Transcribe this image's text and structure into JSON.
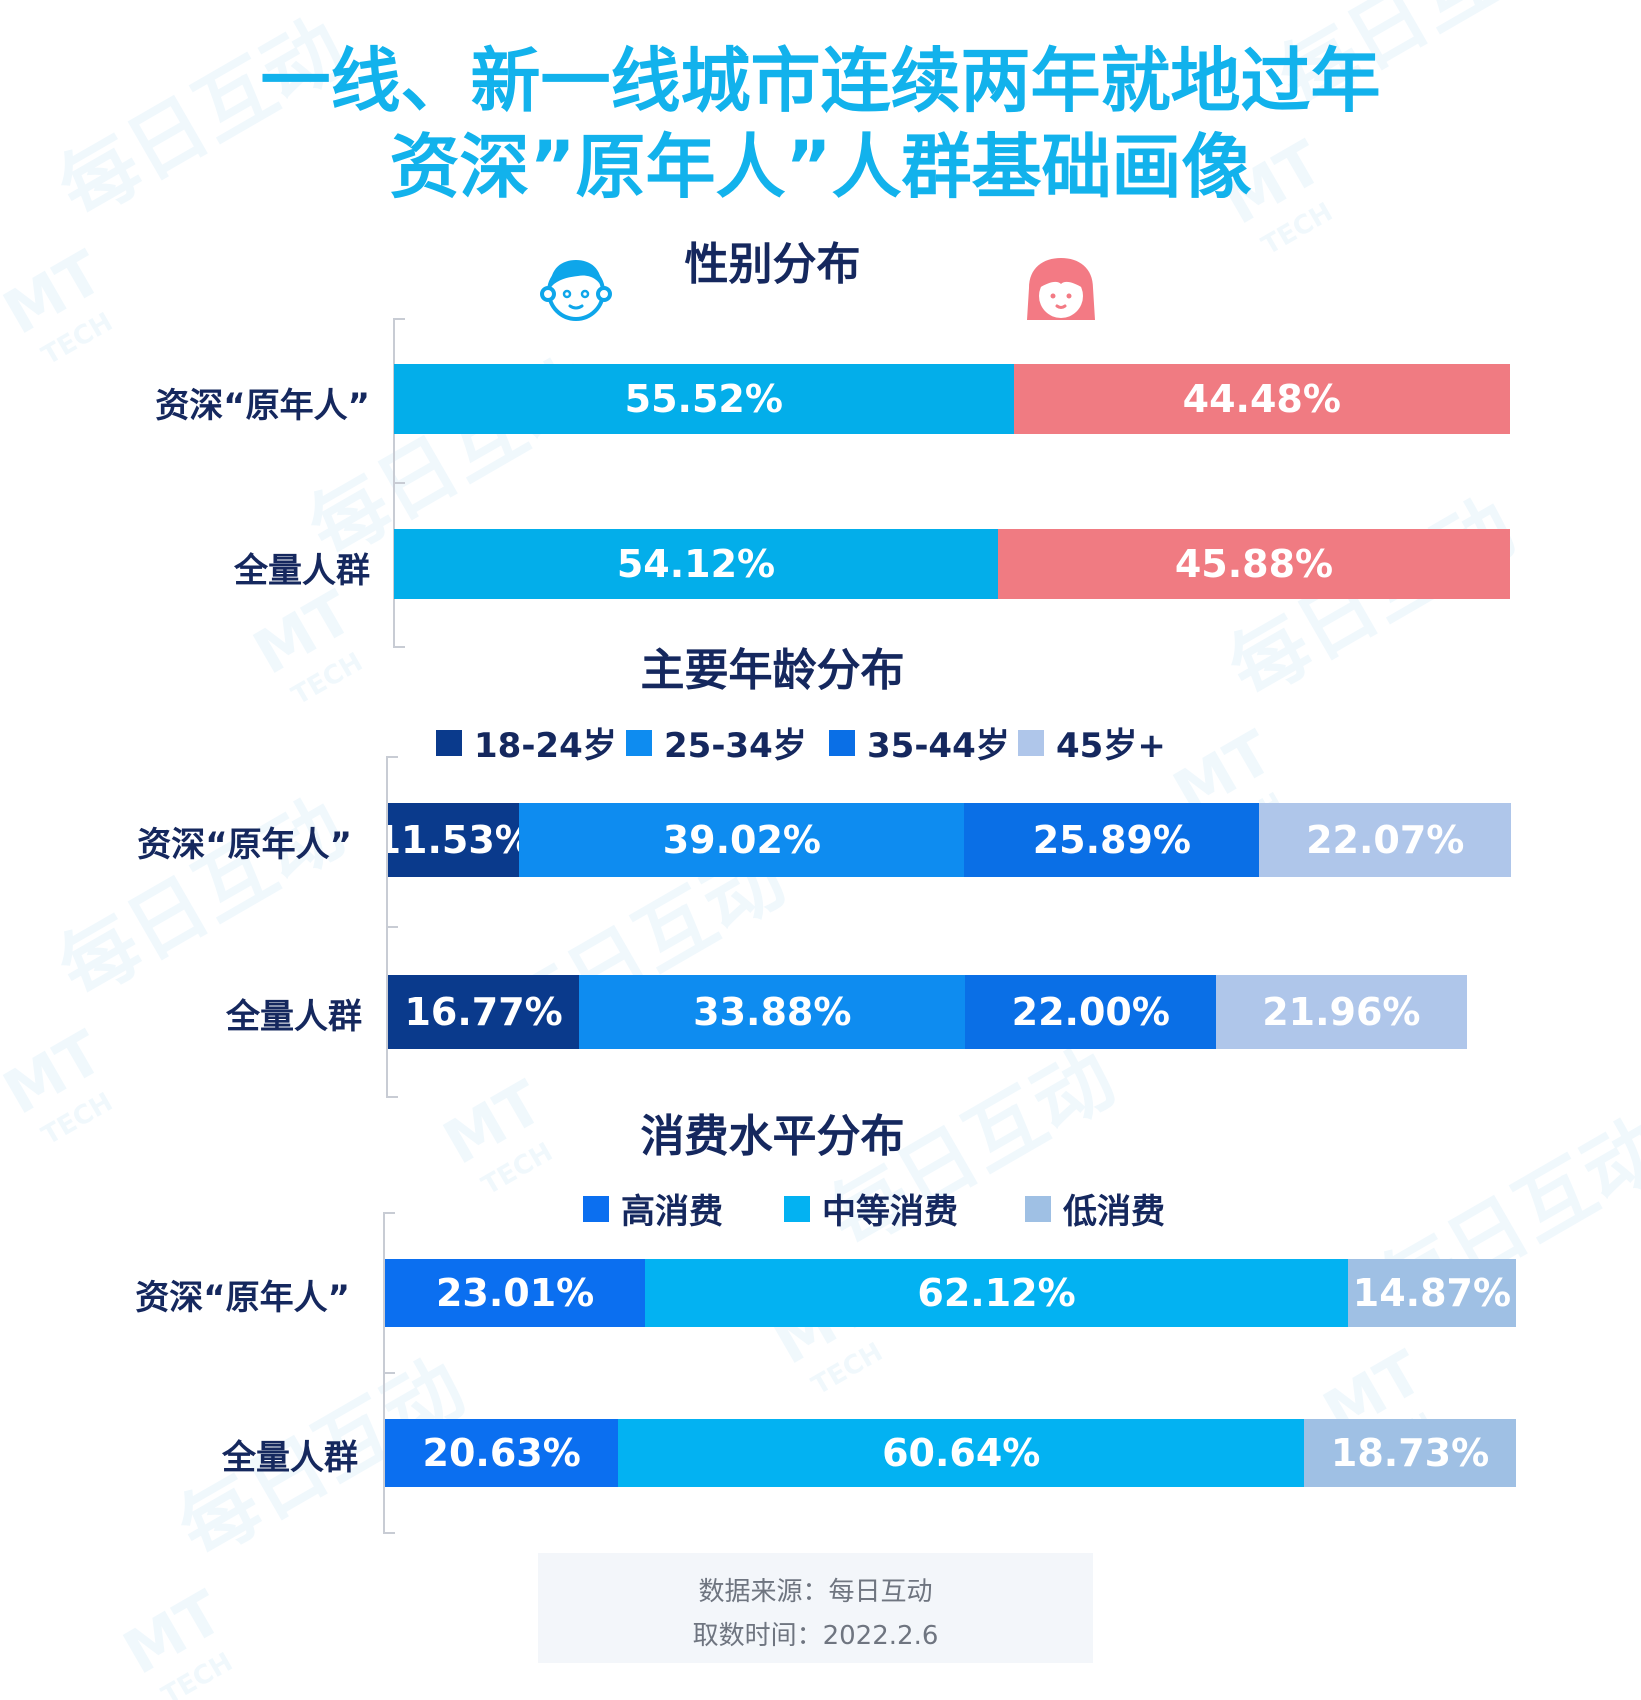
{
  "title": {
    "line1": "一线、新一线城市连续两年就地过年",
    "line2": "资深”原年人”人群基础画像"
  },
  "watermark": {
    "brand": "每日互动",
    "tech": "TECH",
    "logo": "MT"
  },
  "colors": {
    "title": "#12b2ec",
    "dark_text": "#15285e",
    "male": "#03aeea",
    "female": "#f07b82",
    "age_18_24": "#0a3a8c",
    "age_25_34": "#0e8cf0",
    "age_35_44": "#0a6fe6",
    "age_45_plus": "#afc6ea",
    "consume_high": "#0b6ff0",
    "consume_mid": "#03b2f2",
    "consume_low": "#9fc0e4"
  },
  "icons": {
    "male": "boy-face-icon",
    "female": "girl-face-icon"
  },
  "chart_data": [
    {
      "type": "bar",
      "orientation": "horizontal-stacked",
      "title": "性别分布",
      "categories": [
        "资深“原年人”",
        "全量人群"
      ],
      "series": [
        {
          "legend_icon": "boy-face-icon",
          "values": [
            55.52,
            54.12
          ],
          "labels": [
            "55.52%",
            "54.12%"
          ]
        },
        {
          "legend_icon": "girl-face-icon",
          "values": [
            44.48,
            45.88
          ],
          "labels": [
            "44.48%",
            "45.88%"
          ]
        }
      ],
      "xlim": [
        0,
        100
      ]
    },
    {
      "type": "bar",
      "orientation": "horizontal-stacked",
      "title": "主要年龄分布",
      "categories": [
        "资深“原年人”",
        "全量人群"
      ],
      "series": [
        {
          "name": "18-24岁",
          "values": [
            11.53,
            16.77
          ],
          "labels": [
            "11.53%",
            "16.77%"
          ]
        },
        {
          "name": "25-34岁",
          "values": [
            39.02,
            33.88
          ],
          "labels": [
            "39.02%",
            "33.88%"
          ]
        },
        {
          "name": "35-44岁",
          "values": [
            25.89,
            22.0
          ],
          "labels": [
            "25.89%",
            "22.00%"
          ]
        },
        {
          "name": "45岁+",
          "values": [
            22.07,
            21.96
          ],
          "labels": [
            "22.07%",
            "21.96%"
          ]
        }
      ],
      "legend": "top-center",
      "xlim": [
        0,
        100
      ]
    },
    {
      "type": "bar",
      "orientation": "horizontal-stacked",
      "title": "消费水平分布",
      "categories": [
        "资深“原年人”",
        "全量人群"
      ],
      "series": [
        {
          "name": "高消费",
          "values": [
            23.01,
            20.63
          ],
          "labels": [
            "23.01%",
            "20.63%"
          ]
        },
        {
          "name": "中等消费",
          "values": [
            62.12,
            60.64
          ],
          "labels": [
            "62.12%",
            "60.64%"
          ]
        },
        {
          "name": "低消费",
          "values": [
            14.87,
            18.73
          ],
          "labels": [
            "14.87%",
            "18.73%"
          ]
        }
      ],
      "legend": "top-center",
      "xlim": [
        0,
        100
      ]
    }
  ],
  "source": {
    "line1": "数据来源：每日互动",
    "line2": "取数时间：2022.2.6"
  }
}
